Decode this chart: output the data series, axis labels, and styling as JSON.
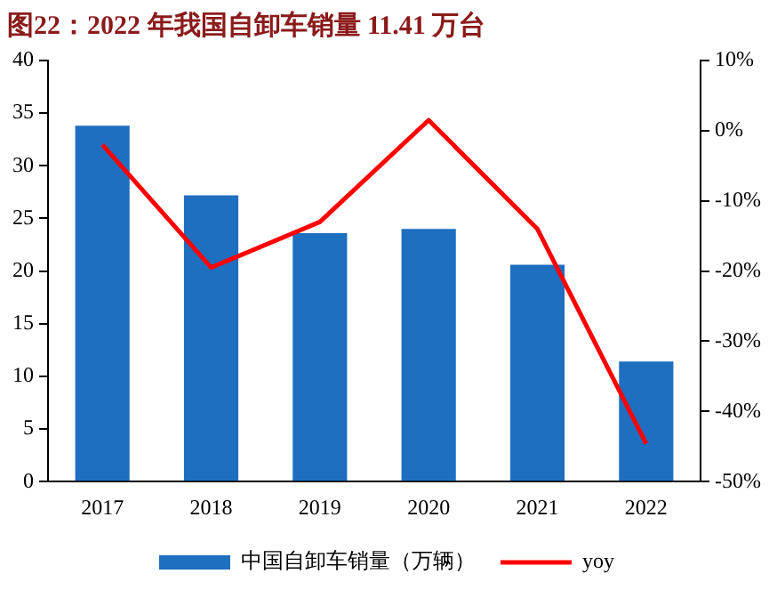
{
  "chart_data": {
    "type": "bar",
    "title": "图22：2022 年我国自卸车销量 11.41 万台",
    "categories": [
      "2017",
      "2018",
      "2019",
      "2020",
      "2021",
      "2022"
    ],
    "series": [
      {
        "name": "中国自卸车销量（万辆）",
        "color": "#1e6fc0",
        "values": [
          33.8,
          27.2,
          23.6,
          24.0,
          20.6,
          11.4
        ]
      },
      {
        "name": "yoy",
        "type": "line",
        "axis": "y2",
        "color": "#ff0000",
        "values": [
          -2,
          -19.5,
          -13,
          1.5,
          -14,
          -44.6
        ]
      }
    ],
    "ylim": [
      0,
      40
    ],
    "yticks": [
      0,
      5,
      10,
      15,
      20,
      25,
      30,
      35,
      40
    ],
    "y2lim": [
      -50,
      10
    ],
    "y2ticks": [
      {
        "value": 10,
        "label": "10%"
      },
      {
        "value": 0,
        "label": "0%"
      },
      {
        "value": -10,
        "label": "-10%"
      },
      {
        "value": -20,
        "label": "-20%"
      },
      {
        "value": -30,
        "label": "-30%"
      },
      {
        "value": -40,
        "label": "-40%"
      },
      {
        "value": -50,
        "label": "-50%"
      }
    ],
    "grid": false,
    "legend": "bottom",
    "marker": "none",
    "line_style": "solid"
  }
}
